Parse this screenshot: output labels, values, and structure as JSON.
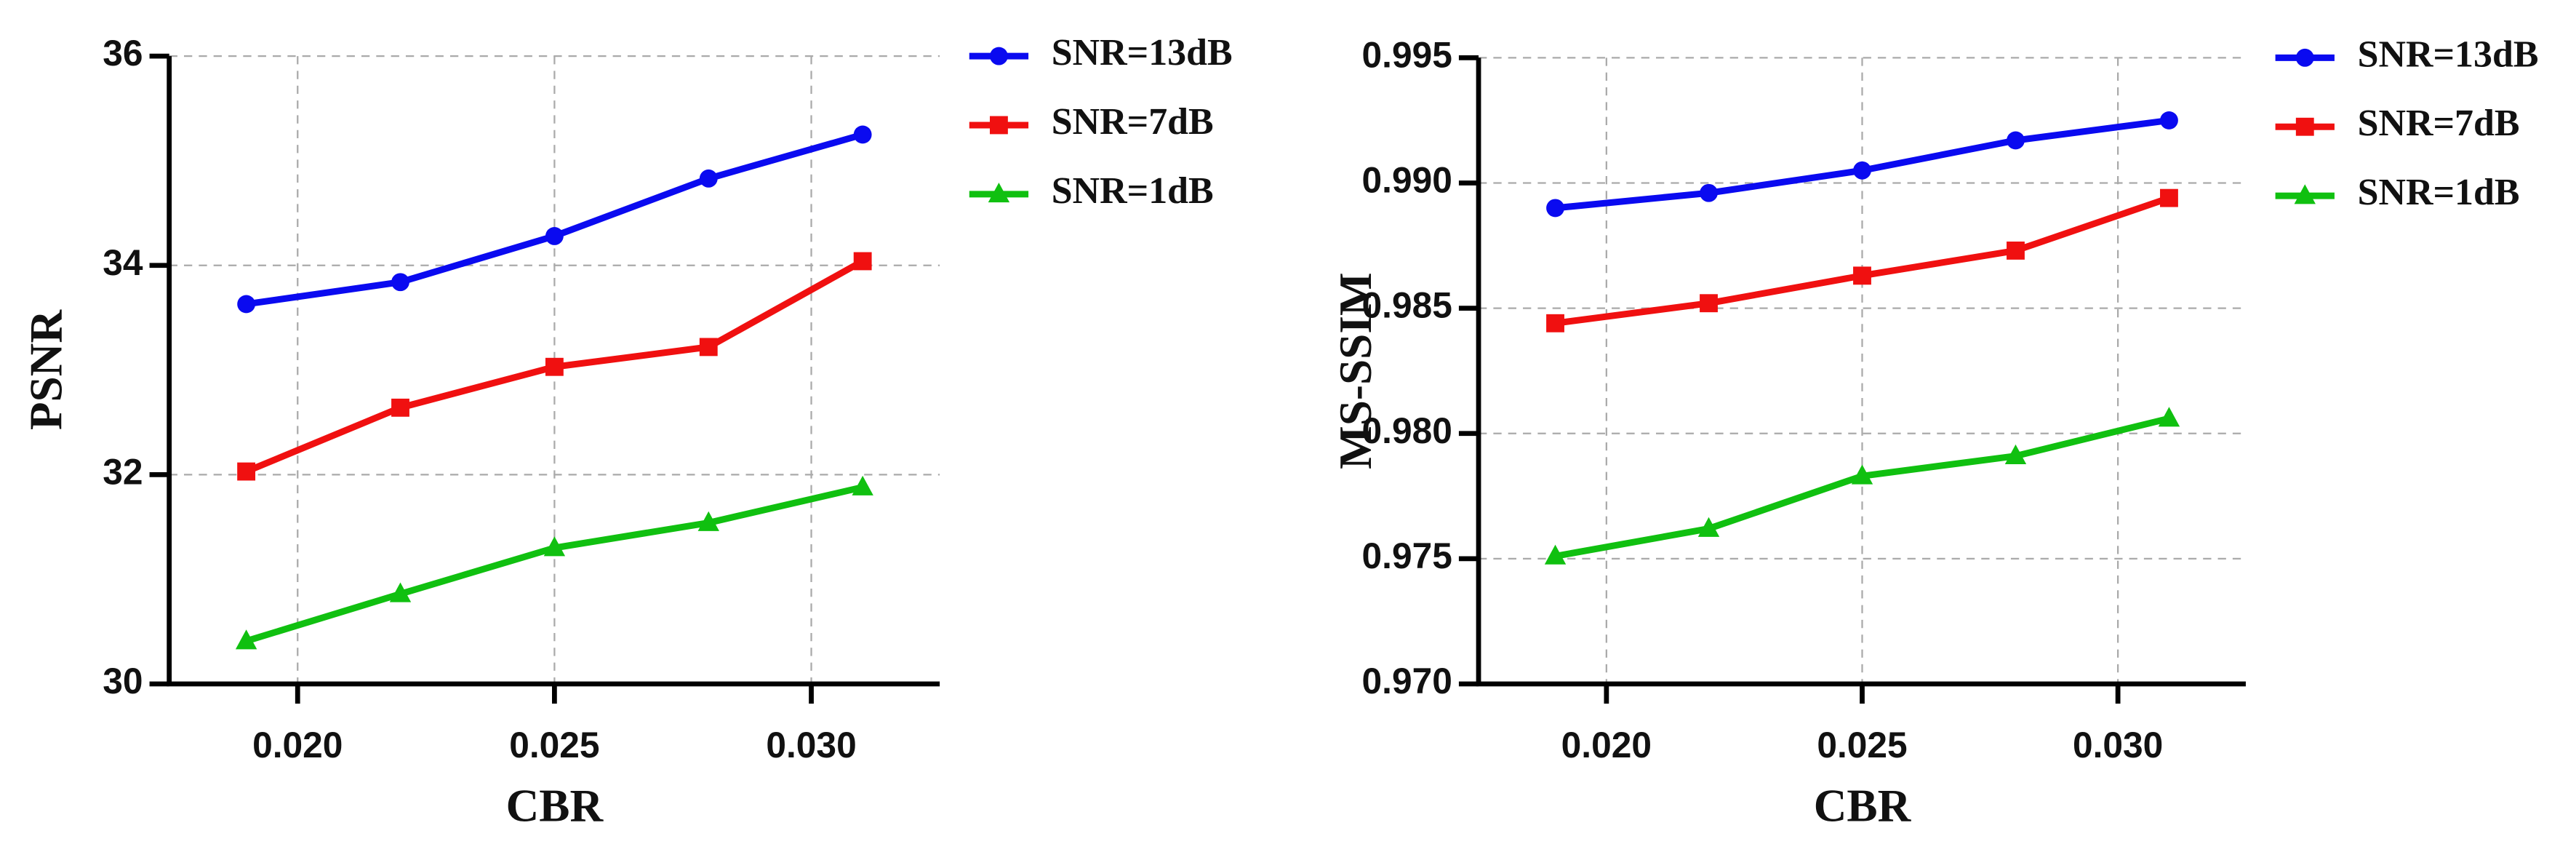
{
  "chart_data": [
    {
      "type": "line",
      "xlabel": "CBR",
      "ylabel": "PSNR",
      "x": [
        0.019,
        0.022,
        0.025,
        0.028,
        0.031
      ],
      "series": [
        {
          "name": "SNR=13dB",
          "color": "#0a0af0",
          "marker": "circle",
          "values": [
            33.63,
            33.84,
            34.28,
            34.83,
            35.25
          ]
        },
        {
          "name": "SNR=7dB",
          "color": "#f01010",
          "marker": "square",
          "values": [
            32.03,
            32.64,
            33.03,
            33.22,
            34.04
          ]
        },
        {
          "name": "SNR=1dB",
          "color": "#10c010",
          "marker": "triangle",
          "values": [
            30.41,
            30.86,
            31.3,
            31.54,
            31.88
          ]
        }
      ],
      "xlim": [
        0.0175,
        0.0325
      ],
      "xticks": [
        {
          "value": 0.02,
          "label": "0.020"
        },
        0.025,
        {
          "value": 0.03,
          "label": "0.030"
        }
      ],
      "ylim": [
        30,
        36
      ],
      "yticks": [
        30,
        32,
        34,
        36
      ],
      "grid": true,
      "legend": "right"
    },
    {
      "type": "line",
      "xlabel": "CBR",
      "ylabel": "MS-SSIM",
      "x": [
        0.019,
        0.022,
        0.025,
        0.028,
        0.031
      ],
      "series": [
        {
          "name": "SNR=13dB",
          "color": "#0a0af0",
          "marker": "circle",
          "values": [
            0.989,
            0.9896,
            0.9905,
            0.9917,
            0.9925
          ]
        },
        {
          "name": "SNR=7dB",
          "color": "#f01010",
          "marker": "square",
          "values": [
            0.9844,
            0.9852,
            0.9863,
            0.9873,
            0.9894
          ]
        },
        {
          "name": "SNR=1dB",
          "color": "#10c010",
          "marker": "triangle",
          "values": [
            0.9751,
            0.9762,
            0.9783,
            0.9791,
            0.9806
          ]
        }
      ],
      "xlim": [
        0.0175,
        0.0325
      ],
      "xticks": [
        {
          "value": 0.02,
          "label": "0.020"
        },
        0.025,
        {
          "value": 0.03,
          "label": "0.030"
        }
      ],
      "ylim": [
        0.97,
        0.995
      ],
      "yticks": [
        {
          "value": 0.97,
          "label": "0.970"
        },
        0.975,
        {
          "value": 0.98,
          "label": "0.980"
        },
        0.985,
        {
          "value": 0.99,
          "label": "0.990"
        },
        0.995
      ],
      "grid": true,
      "legend": "right"
    }
  ]
}
